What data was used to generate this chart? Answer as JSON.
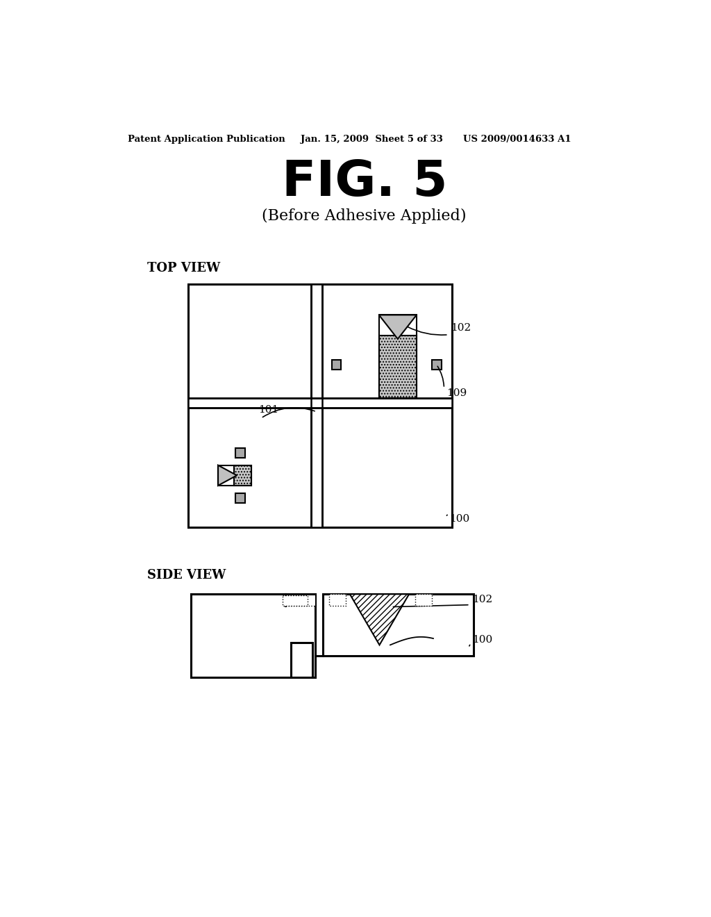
{
  "bg_color": "#ffffff",
  "header_left": "Patent Application Publication",
  "header_mid": "Jan. 15, 2009  Sheet 5 of 33",
  "header_right": "US 2009/0014633 A1",
  "fig_title": "FIG. 5",
  "subtitle": "(Before Adhesive Applied)",
  "label_top_view": "TOP VIEW",
  "label_side_view": "SIDE VIEW",
  "label_100": "100",
  "label_101": "101",
  "label_102": "102",
  "label_109": "109"
}
